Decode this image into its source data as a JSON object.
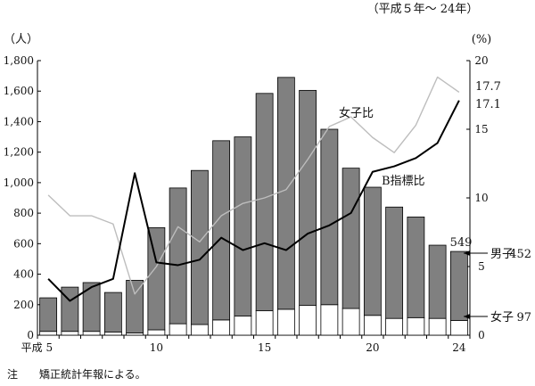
{
  "chart_data": {
    "type": "bar",
    "period_note": "（平成５年～ 24年）",
    "y_left_unit": "（人）",
    "y_right_unit": "(%)",
    "y_left_ticks": [
      "0",
      "200",
      "400",
      "600",
      "800",
      "1,000",
      "1,200",
      "1,400",
      "1,600",
      "1,800"
    ],
    "y_right_ticks": [
      "0",
      "5",
      "10",
      "15",
      "20"
    ],
    "ylim_left": [
      0,
      1800
    ],
    "ylim_right": [
      0,
      20
    ],
    "x_tick_labels": [
      "平成 5",
      "10",
      "15",
      "20",
      "24"
    ],
    "x": [
      5,
      6,
      7,
      8,
      9,
      10,
      11,
      12,
      13,
      14,
      15,
      16,
      17,
      18,
      19,
      20,
      21,
      22,
      23,
      24
    ],
    "series": [
      {
        "name": "男子",
        "kind": "bar",
        "color": "#808080",
        "values": [
          220,
          290,
          320,
          260,
          345,
          670,
          890,
          1010,
          1175,
          1175,
          1425,
          1520,
          1410,
          1150,
          920,
          840,
          730,
          660,
          480,
          452
        ]
      },
      {
        "name": "女子",
        "kind": "bar",
        "color": "#ffffff",
        "values": [
          25,
          25,
          25,
          20,
          15,
          35,
          75,
          70,
          100,
          125,
          160,
          170,
          195,
          200,
          175,
          130,
          110,
          115,
          110,
          97
        ]
      },
      {
        "name": "女子比",
        "kind": "line",
        "axis": "right",
        "color": "#bdbdbd",
        "values": [
          10.2,
          8.7,
          8.7,
          8.1,
          3.0,
          5.0,
          7.9,
          6.8,
          8.7,
          9.6,
          10.0,
          10.6,
          12.8,
          15.2,
          15.9,
          14.4,
          13.3,
          15.3,
          18.8,
          17.7
        ]
      },
      {
        "name": "B指標比",
        "kind": "line",
        "axis": "right",
        "color": "#000000",
        "values": [
          4.1,
          2.5,
          3.5,
          4.1,
          11.8,
          5.3,
          5.1,
          5.5,
          7.1,
          6.2,
          6.7,
          6.2,
          7.4,
          8.0,
          8.9,
          11.9,
          12.3,
          12.9,
          14.0,
          17.1
        ]
      }
    ],
    "annotations": {
      "total_last": "549",
      "female_ratio_last": "17.7",
      "bindex_ratio_last": "17.1",
      "male_label": "男子",
      "male_value": "452",
      "female_label": "女子",
      "female_value": "97",
      "female_ratio_label": "女子比",
      "bindex_label": "B指標比"
    }
  },
  "footnote": {
    "marker": "注",
    "text": "矯正統計年報による。"
  }
}
